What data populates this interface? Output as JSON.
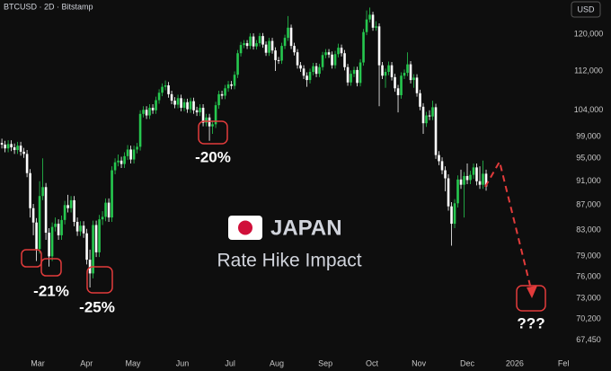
{
  "chart_data": {
    "type": "candlestick",
    "title": "BTCUSD · 2D · Bitstamp",
    "currency": "USD",
    "overlay_title": "JAPAN",
    "overlay_subtitle": "Rate Hike Impact",
    "annotations": [
      "-21%",
      "-25%",
      "-20%",
      "???"
    ],
    "up_color": "#26c84f",
    "down_color": "#ffffff",
    "log_scale": true,
    "grid": false,
    "ylim": [
      65300,
      128000
    ],
    "yticks": [
      {
        "value": 120000,
        "label": "120,000"
      },
      {
        "value": 112000,
        "label": "112,000"
      },
      {
        "value": 104000,
        "label": "104,000"
      },
      {
        "value": 99000,
        "label": "99,000"
      },
      {
        "value": 95000,
        "label": "95,000"
      },
      {
        "value": 91000,
        "label": "91,000"
      },
      {
        "value": 87000,
        "label": "87,000"
      },
      {
        "value": 83000,
        "label": "83,000"
      },
      {
        "value": 79000,
        "label": "79,000"
      },
      {
        "value": 76000,
        "label": "76,000"
      },
      {
        "value": 73000,
        "label": "73,000"
      },
      {
        "value": 70200,
        "label": "70,200"
      },
      {
        "value": 67450,
        "label": "67,450"
      }
    ],
    "xlim": [
      -0.6,
      180
    ],
    "xticks": [
      {
        "value": 11.4,
        "label": "Mar"
      },
      {
        "value": 26.9,
        "label": "Apr"
      },
      {
        "value": 41.7,
        "label": "May"
      },
      {
        "value": 57.4,
        "label": "Jun"
      },
      {
        "value": 72.6,
        "label": "Jul"
      },
      {
        "value": 87.4,
        "label": "Aug"
      },
      {
        "value": 102.9,
        "label": "Sep"
      },
      {
        "value": 117.7,
        "label": "Oct"
      },
      {
        "value": 132.6,
        "label": "Nov"
      },
      {
        "value": 148,
        "label": "Dec"
      },
      {
        "value": 163.1,
        "label": "2026"
      },
      {
        "value": 178.6,
        "label": "Fel"
      }
    ],
    "open": [
      97800,
      97500,
      96800,
      97600,
      97000,
      96500,
      97300,
      96200,
      95800,
      92400,
      86500,
      84200,
      80100,
      88500,
      90000,
      82600,
      79000,
      83500,
      84000,
      82200,
      84600,
      87000,
      86500,
      87800,
      84300,
      82800,
      83700,
      82500,
      78500,
      76500,
      83800,
      79600,
      84700,
      85100,
      87400,
      85000,
      92900,
      94300,
      94600,
      94000,
      95400,
      96600,
      94800,
      96600,
      97100,
      103300,
      104100,
      103000,
      104500,
      104000,
      106000,
      107500,
      108700,
      109000,
      107200,
      105900,
      105100,
      106400,
      104500,
      105600,
      104200,
      105800,
      104000,
      103600,
      104500,
      101600,
      102600,
      100900,
      101300,
      105000,
      107200,
      106900,
      108400,
      109200,
      108900,
      111200,
      115800,
      117600,
      118000,
      117400,
      119500,
      117300,
      118000,
      119600,
      117700,
      115900,
      118500,
      116400,
      114300,
      114200,
      117400,
      119200,
      121500,
      117400,
      116000,
      113200,
      112500,
      111000,
      110100,
      111800,
      113000,
      111400,
      112800,
      115400,
      116000,
      115500,
      113200,
      115600,
      117000,
      115800,
      112800,
      109600,
      111400,
      112200,
      109500,
      113800,
      120500,
      123400,
      124500,
      121500,
      121800,
      113200,
      111000,
      111800,
      113200,
      110700,
      108400,
      107000,
      111000,
      111600,
      113400,
      110100,
      110600,
      107400,
      104700,
      101500,
      103000,
      102800,
      104600,
      95600,
      94500,
      92900,
      91500,
      86800,
      84000,
      87300,
      91300,
      90400,
      91900,
      91200,
      92100,
      93400,
      91000,
      90400,
      92300
    ],
    "high": [
      98600,
      98200,
      98300,
      98300,
      97700,
      98000,
      98000,
      96900,
      96500,
      93100,
      87200,
      84900,
      91000,
      95000,
      90700,
      83300,
      84200,
      85000,
      84700,
      85300,
      87700,
      88700,
      88500,
      88500,
      85000,
      84400,
      84400,
      83200,
      80000,
      84500,
      84500,
      85400,
      86000,
      88100,
      88100,
      93600,
      95000,
      95700,
      95300,
      96100,
      97400,
      97300,
      97300,
      97800,
      104000,
      104800,
      104800,
      105200,
      105200,
      106700,
      108200,
      109400,
      110000,
      109700,
      107900,
      106600,
      107100,
      107100,
      106300,
      106300,
      106500,
      106500,
      104700,
      105200,
      105200,
      103300,
      103300,
      102000,
      105700,
      107900,
      107900,
      109100,
      109900,
      109900,
      111900,
      116500,
      118300,
      118700,
      118700,
      120200,
      120200,
      118700,
      120300,
      120300,
      118400,
      119200,
      119200,
      117100,
      115000,
      118100,
      119900,
      124200,
      122200,
      118100,
      116700,
      113900,
      113200,
      111700,
      112500,
      113700,
      113700,
      113500,
      116100,
      116700,
      116700,
      116200,
      116300,
      117900,
      117700,
      116500,
      113500,
      112100,
      112900,
      112900,
      114500,
      121200,
      125500,
      126200,
      125200,
      123000,
      122500,
      113900,
      112500,
      114000,
      113900,
      111400,
      109100,
      111700,
      112300,
      116000,
      114100,
      111300,
      111300,
      108100,
      105400,
      103700,
      104000,
      105900,
      105300,
      96300,
      95200,
      93600,
      92200,
      87500,
      88000,
      92000,
      93000,
      92600,
      94100,
      92800,
      94100,
      94100,
      93600,
      94600,
      93000
    ],
    "low": [
      96800,
      96100,
      96100,
      96300,
      95800,
      95800,
      95500,
      95100,
      91700,
      85000,
      82200,
      78300,
      79400,
      87800,
      81500,
      77500,
      78300,
      82800,
      81500,
      81500,
      83900,
      85800,
      85800,
      83600,
      82100,
      82100,
      81800,
      77800,
      74500,
      75800,
      78900,
      78900,
      83800,
      84400,
      84300,
      84300,
      92200,
      93600,
      93300,
      93300,
      94700,
      94100,
      94100,
      95900,
      96400,
      102600,
      102300,
      102300,
      103300,
      103300,
      105300,
      106800,
      108000,
      106500,
      105200,
      104400,
      104400,
      103800,
      103800,
      103500,
      103500,
      103300,
      102900,
      102900,
      100900,
      100900,
      98200,
      99500,
      100600,
      104300,
      106200,
      106200,
      107700,
      108200,
      108200,
      110500,
      115100,
      116900,
      116700,
      116700,
      116600,
      116600,
      117300,
      117000,
      115200,
      115200,
      115700,
      112000,
      113500,
      113500,
      116700,
      118500,
      116700,
      115300,
      112500,
      111800,
      110300,
      108700,
      109400,
      111100,
      110700,
      110700,
      112100,
      114700,
      114800,
      112500,
      112500,
      114900,
      115100,
      112100,
      108900,
      108900,
      110700,
      108800,
      108800,
      113100,
      119800,
      122700,
      120800,
      120800,
      104800,
      110300,
      108500,
      111100,
      110000,
      107700,
      103600,
      106300,
      110300,
      110900,
      109400,
      108500,
      106700,
      104000,
      99500,
      100800,
      102100,
      102100,
      94900,
      93800,
      92200,
      89300,
      86100,
      80600,
      83300,
      86600,
      89700,
      85000,
      90500,
      90500,
      91400,
      90300,
      89700,
      89700,
      89400
    ],
    "close": [
      97500,
      96800,
      97600,
      97000,
      96500,
      97300,
      96200,
      95800,
      92400,
      86500,
      84200,
      80100,
      88500,
      90000,
      82600,
      79000,
      83500,
      84000,
      82200,
      84600,
      87000,
      86500,
      87800,
      84300,
      82800,
      83700,
      82500,
      78500,
      76500,
      83800,
      79600,
      84700,
      85100,
      87400,
      85000,
      92900,
      94300,
      94600,
      94000,
      95400,
      96600,
      94800,
      96600,
      97100,
      103300,
      104100,
      103000,
      104500,
      104000,
      106000,
      107500,
      108700,
      109000,
      107200,
      105900,
      105100,
      106400,
      104500,
      105600,
      104200,
      105800,
      104000,
      103600,
      104500,
      101600,
      102600,
      100900,
      101300,
      105000,
      107200,
      106900,
      108400,
      109200,
      108900,
      111200,
      115800,
      117600,
      118000,
      117400,
      119500,
      117300,
      118000,
      119600,
      117700,
      115900,
      118500,
      116400,
      114300,
      114200,
      117400,
      119200,
      121500,
      117400,
      116000,
      113200,
      112500,
      111000,
      110100,
      111800,
      113000,
      111400,
      112800,
      115400,
      116000,
      115500,
      113200,
      115600,
      117000,
      115800,
      112800,
      109600,
      111400,
      112200,
      109500,
      113800,
      120500,
      123400,
      124500,
      121500,
      121800,
      113200,
      111000,
      111800,
      113200,
      110700,
      108400,
      107000,
      111000,
      111600,
      113400,
      110100,
      110600,
      107400,
      104700,
      101500,
      103000,
      102800,
      104600,
      95600,
      94500,
      92900,
      91500,
      86800,
      84000,
      87300,
      91300,
      90400,
      91900,
      91200,
      92100,
      93400,
      91000,
      90400,
      92300,
      90100
    ]
  }
}
